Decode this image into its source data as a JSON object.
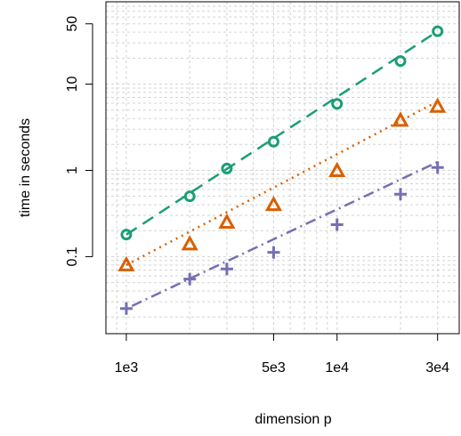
{
  "chart_data": {
    "type": "scatter",
    "xlabel": "dimension p",
    "ylabel": "time in seconds",
    "x_scale": "log",
    "y_scale": "log",
    "xlim": [
      800,
      38000
    ],
    "ylim": [
      0.0128,
      90
    ],
    "x_ticks": [
      {
        "value": 1000,
        "label": "1e3"
      },
      {
        "value": 5000,
        "label": "5e3"
      },
      {
        "value": 10000,
        "label": "1e4"
      },
      {
        "value": 30000,
        "label": "3e4"
      }
    ],
    "y_ticks": [
      {
        "value": 0.1,
        "label": "0.1"
      },
      {
        "value": 1,
        "label": "1"
      },
      {
        "value": 10,
        "label": "10"
      },
      {
        "value": 50,
        "label": "50"
      }
    ],
    "grid": true,
    "series": [
      {
        "color": "#1b9e77",
        "marker": "circle",
        "line_style": "dashed",
        "x": [
          1000,
          2000,
          3000,
          5000,
          10000,
          20000,
          30000
        ],
        "y": [
          0.18,
          0.5,
          1.05,
          2.15,
          5.9,
          18.5,
          41
        ],
        "fit": [
          [
            1000,
            0.18
          ],
          [
            30000,
            41
          ]
        ]
      },
      {
        "color": "#d95f02",
        "marker": "triangle",
        "line_style": "dotted",
        "x": [
          1000,
          2000,
          3000,
          5000,
          10000,
          20000,
          30000
        ],
        "y": [
          0.08,
          0.14,
          0.25,
          0.4,
          0.99,
          3.8,
          5.5
        ],
        "fit": [
          [
            1000,
            0.08
          ],
          [
            30000,
            6.3
          ]
        ]
      },
      {
        "color": "#7570b3",
        "marker": "plus",
        "line_style": "dotdash",
        "x": [
          1000,
          2000,
          3000,
          5000,
          10000,
          20000,
          30000
        ],
        "y": [
          0.025,
          0.055,
          0.072,
          0.112,
          0.235,
          0.53,
          1.08
        ],
        "fit": [
          [
            1000,
            0.025
          ],
          [
            30000,
            1.25
          ]
        ]
      }
    ]
  }
}
